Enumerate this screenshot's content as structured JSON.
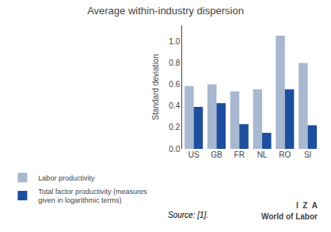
{
  "chart_data": {
    "type": "bar",
    "title": "Average within-industry dispersion",
    "y_label": "Standard deviation",
    "categories": [
      "US",
      "GB",
      "FR",
      "NL",
      "RO",
      "SI"
    ],
    "series": [
      {
        "name": "Labor productivity",
        "color": "#a8b8d0",
        "values": [
          0.585,
          0.6,
          0.535,
          0.555,
          1.055,
          0.8
        ]
      },
      {
        "name": "Total factor productivity (measures\ngiven in logarithmic terms)",
        "color": "#1c4fa0",
        "values": [
          0.39,
          0.425,
          0.23,
          0.15,
          0.555,
          0.22
        ]
      }
    ],
    "ylim": [
      0,
      1.15
    ],
    "yticks": [
      {
        "value": 0,
        "label": "0.0"
      },
      0.2,
      0.4,
      0.6,
      0.8,
      {
        "value": 1.0,
        "label": "1.0"
      }
    ],
    "grid": false,
    "legend": "bottom",
    "annotations": [
      "Source: [1].",
      "I  Z  A",
      "World of Labor"
    ]
  }
}
